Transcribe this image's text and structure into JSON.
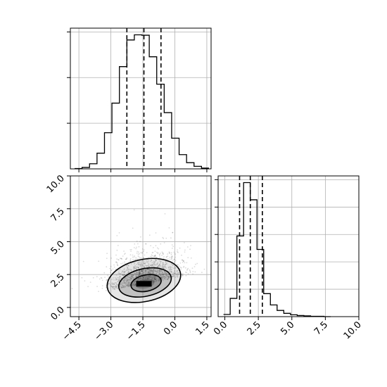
{
  "chart_data": {
    "type": "corner",
    "panels": [
      {
        "id": "hist-x",
        "type": "histogram",
        "xlim": [
          -4.9,
          1.7
        ],
        "bin_edges": [
          -4.7,
          -4.35,
          -4.0,
          -3.65,
          -3.3,
          -2.95,
          -2.6,
          -2.25,
          -1.9,
          -1.55,
          -1.2,
          -0.85,
          -0.5,
          -0.15,
          0.2,
          0.55,
          0.9,
          1.25,
          1.6
        ],
        "counts": [
          1,
          4,
          14,
          43,
          99,
          180,
          280,
          353,
          367,
          366,
          307,
          232,
          154,
          84,
          39,
          17,
          7,
          2
        ],
        "quantile_lines": [
          -2.25,
          -1.45,
          -0.65
        ]
      },
      {
        "id": "scatter-xy",
        "type": "2d-density",
        "xlim": [
          -4.9,
          1.7
        ],
        "ylim": [
          -0.7,
          10.0
        ],
        "xticks": [
          "−4.5",
          "−3.0",
          "−1.5",
          "0.0",
          "1.5"
        ],
        "xtick_values": [
          -4.5,
          -3.0,
          -1.5,
          0.0,
          1.5
        ],
        "yticks": [
          "0.0",
          "2.5",
          "5.0",
          "7.5",
          "10.0"
        ],
        "ytick_values": [
          0.0,
          2.5,
          5.0,
          7.5,
          10.0
        ],
        "density_center": [
          -1.4,
          1.8
        ],
        "contours": [
          {
            "level": "inner",
            "cx": -1.35,
            "cy": 1.85,
            "rx": 0.72,
            "ry": 0.62
          },
          {
            "level": "middle",
            "cx": -1.4,
            "cy": 1.9,
            "rx": 1.25,
            "ry": 1.05
          },
          {
            "level": "outer",
            "cx": -1.45,
            "cy": 2.05,
            "rx": 1.75,
            "ry": 1.6
          }
        ]
      },
      {
        "id": "hist-y",
        "type": "histogram",
        "xlim": [
          -0.5,
          10.0
        ],
        "xticks": [
          "0.0",
          "2.5",
          "5.0",
          "7.5",
          "10.0"
        ],
        "xtick_values": [
          0.0,
          2.5,
          5.0,
          7.5,
          10.0
        ],
        "bin_edges": [
          -0.1,
          0.4,
          0.9,
          1.4,
          1.9,
          2.4,
          2.9,
          3.4,
          3.9,
          4.4,
          4.9,
          5.4,
          5.9,
          6.4,
          6.9,
          7.4,
          7.9
        ],
        "counts": [
          6,
          50,
          221,
          367,
          320,
          184,
          63,
          32,
          17,
          9,
          5,
          3,
          2,
          1,
          1,
          0
        ],
        "quantile_lines": [
          1.1,
          1.9,
          2.8
        ]
      }
    ]
  },
  "icons": {
    "markers": "scatter-point"
  }
}
